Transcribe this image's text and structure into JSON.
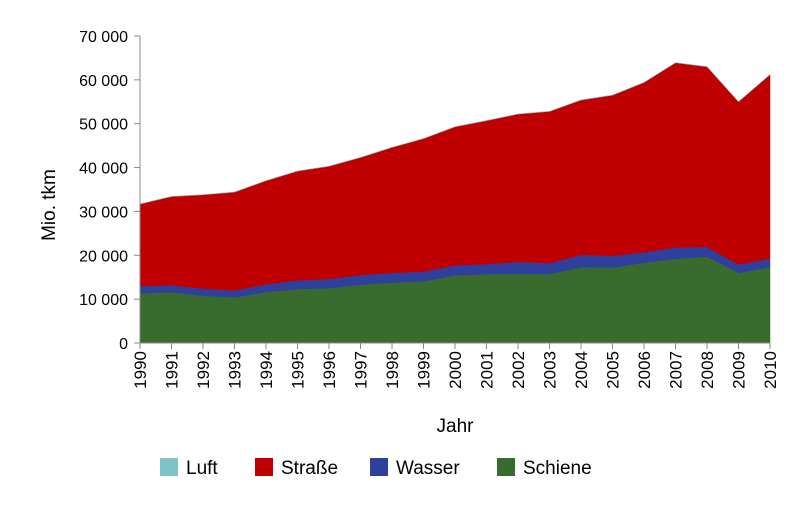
{
  "chart_data": {
    "type": "area",
    "stacked": true,
    "title": "",
    "xlabel": "Jahr",
    "ylabel": "Mio. tkm",
    "ylim": [
      0,
      70000
    ],
    "y_ticks": [
      0,
      10000,
      20000,
      30000,
      40000,
      50000,
      60000,
      70000
    ],
    "y_tick_labels": [
      "0",
      "10 000",
      "20 000",
      "30 000",
      "40 000",
      "50 000",
      "60 000",
      "70 000"
    ],
    "grid": false,
    "legend_position": "bottom",
    "categories": [
      "1990",
      "1991",
      "1992",
      "1993",
      "1994",
      "1995",
      "1996",
      "1997",
      "1998",
      "1999",
      "2000",
      "2001",
      "2002",
      "2003",
      "2004",
      "2005",
      "2006",
      "2007",
      "2008",
      "2009",
      "2010"
    ],
    "series": [
      {
        "name": "Schiene",
        "color": "#3a6b2e",
        "values": [
          11300,
          11600,
          10800,
          10400,
          11600,
          12300,
          12500,
          13300,
          13800,
          14100,
          15400,
          15700,
          15800,
          15700,
          17300,
          17200,
          18300,
          19200,
          19700,
          16000,
          17300
        ]
      },
      {
        "name": "Wasser",
        "color": "#2f3f9c",
        "values": [
          1700,
          1600,
          1600,
          1600,
          1800,
          2000,
          2100,
          2200,
          2200,
          2200,
          2300,
          2300,
          2700,
          2500,
          2800,
          2700,
          2400,
          2600,
          2200,
          1900,
          2000
        ]
      },
      {
        "name": "Straße",
        "color": "#c00000",
        "values": [
          18700,
          20200,
          21400,
          22400,
          23600,
          24900,
          25700,
          26800,
          28600,
          30300,
          31600,
          32700,
          33700,
          34600,
          35300,
          36600,
          38700,
          42100,
          41100,
          37100,
          41900
        ]
      },
      {
        "name": "Luft",
        "color": "#7fc4c4",
        "values": [
          20,
          20,
          20,
          20,
          20,
          20,
          20,
          20,
          20,
          20,
          20,
          20,
          20,
          20,
          30,
          30,
          30,
          30,
          30,
          30,
          30
        ]
      }
    ],
    "legend_order": [
      "Luft",
      "Straße",
      "Wasser",
      "Schiene"
    ]
  }
}
